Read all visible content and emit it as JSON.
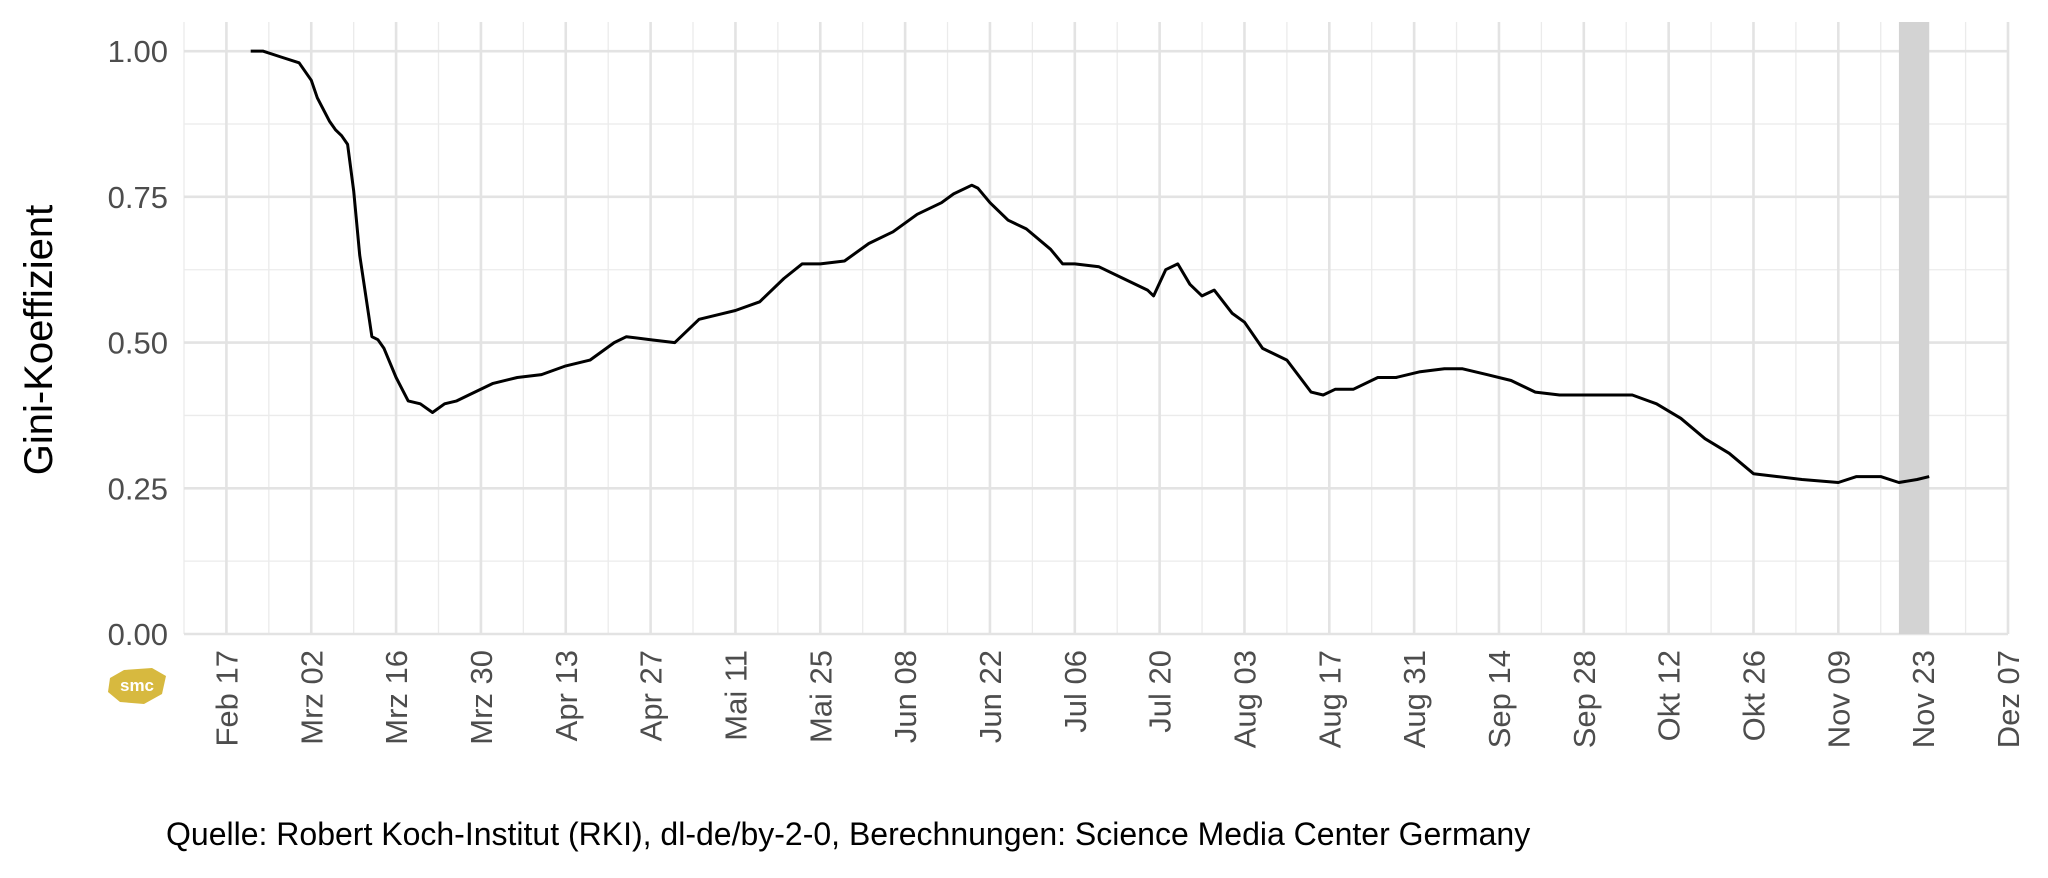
{
  "chart_data": {
    "type": "line",
    "title": "",
    "xlabel": "",
    "ylabel": "Gini-Koeffizient",
    "ylim": [
      0,
      1.05
    ],
    "yticks": [
      0,
      0.25,
      0.5,
      0.75,
      1.0
    ],
    "ytick_labels": [
      "0.00",
      "0.25",
      "0.50",
      "0.75",
      "1.00"
    ],
    "xticks": [
      "2020-02-17",
      "2020-03-02",
      "2020-03-16",
      "2020-03-30",
      "2020-04-13",
      "2020-04-27",
      "2020-05-11",
      "2020-05-25",
      "2020-06-08",
      "2020-06-22",
      "2020-07-06",
      "2020-07-20",
      "2020-08-03",
      "2020-08-17",
      "2020-08-31",
      "2020-09-14",
      "2020-09-28",
      "2020-10-12",
      "2020-10-26",
      "2020-11-09",
      "2020-11-23",
      "2020-12-07"
    ],
    "xtick_labels": [
      "Feb 17",
      "Mrz 02",
      "Mrz 16",
      "Mrz 30",
      "Apr 13",
      "Apr 27",
      "Mai 11",
      "Mai 25",
      "Jun 08",
      "Jun 22",
      "Jul 06",
      "Jul 20",
      "Aug 03",
      "Aug 17",
      "Aug 31",
      "Sep 14",
      "Sep 28",
      "Okt 12",
      "Okt 26",
      "Nov 09",
      "Nov 23",
      "Dez 07"
    ],
    "xlim": [
      "2020-02-10",
      "2020-12-07"
    ],
    "grid": true,
    "shaded_region": {
      "x0": "2020-11-19",
      "x1": "2020-11-24",
      "color": "#d3d3d3"
    },
    "series": [
      {
        "color": "#000000",
        "x": [
          "2020-02-21",
          "2020-02-23",
          "2020-02-26",
          "2020-02-29",
          "2020-03-02",
          "2020-03-03",
          "2020-03-05",
          "2020-03-06",
          "2020-03-07",
          "2020-03-08",
          "2020-03-09",
          "2020-03-10",
          "2020-03-12",
          "2020-03-13",
          "2020-03-14",
          "2020-03-16",
          "2020-03-18",
          "2020-03-20",
          "2020-03-22",
          "2020-03-24",
          "2020-03-26",
          "2020-03-28",
          "2020-04-01",
          "2020-04-05",
          "2020-04-09",
          "2020-04-13",
          "2020-04-17",
          "2020-04-21",
          "2020-04-23",
          "2020-04-27",
          "2020-05-01",
          "2020-05-05",
          "2020-05-09",
          "2020-05-11",
          "2020-05-15",
          "2020-05-19",
          "2020-05-22",
          "2020-05-25",
          "2020-05-29",
          "2020-06-02",
          "2020-06-06",
          "2020-06-10",
          "2020-06-14",
          "2020-06-16",
          "2020-06-19",
          "2020-06-20",
          "2020-06-22",
          "2020-06-25",
          "2020-06-28",
          "2020-07-02",
          "2020-07-04",
          "2020-07-06",
          "2020-07-10",
          "2020-07-14",
          "2020-07-18",
          "2020-07-19",
          "2020-07-21",
          "2020-07-23",
          "2020-07-25",
          "2020-07-27",
          "2020-07-29",
          "2020-08-01",
          "2020-08-03",
          "2020-08-06",
          "2020-08-10",
          "2020-08-14",
          "2020-08-16",
          "2020-08-18",
          "2020-08-21",
          "2020-08-25",
          "2020-08-28",
          "2020-09-01",
          "2020-09-05",
          "2020-09-08",
          "2020-09-12",
          "2020-09-16",
          "2020-09-20",
          "2020-09-24",
          "2020-09-28",
          "2020-10-02",
          "2020-10-06",
          "2020-10-10",
          "2020-10-14",
          "2020-10-18",
          "2020-10-22",
          "2020-10-26",
          "2020-10-30",
          "2020-11-03",
          "2020-11-09",
          "2020-11-12",
          "2020-11-16",
          "2020-11-19",
          "2020-11-22",
          "2020-11-24"
        ],
        "values": [
          1.0,
          1.0,
          0.99,
          0.98,
          0.95,
          0.92,
          0.88,
          0.865,
          0.855,
          0.84,
          0.76,
          0.65,
          0.51,
          0.505,
          0.49,
          0.44,
          0.4,
          0.395,
          0.38,
          0.395,
          0.4,
          0.41,
          0.43,
          0.44,
          0.445,
          0.46,
          0.47,
          0.5,
          0.51,
          0.505,
          0.5,
          0.54,
          0.55,
          0.555,
          0.57,
          0.61,
          0.635,
          0.635,
          0.64,
          0.67,
          0.69,
          0.72,
          0.74,
          0.755,
          0.77,
          0.765,
          0.74,
          0.71,
          0.695,
          0.66,
          0.635,
          0.635,
          0.63,
          0.61,
          0.59,
          0.58,
          0.625,
          0.635,
          0.6,
          0.58,
          0.59,
          0.55,
          0.535,
          0.49,
          0.47,
          0.415,
          0.41,
          0.42,
          0.42,
          0.44,
          0.44,
          0.45,
          0.455,
          0.455,
          0.445,
          0.435,
          0.415,
          0.41,
          0.41,
          0.41,
          0.41,
          0.395,
          0.37,
          0.335,
          0.31,
          0.275,
          0.27,
          0.265,
          0.26,
          0.27,
          0.27,
          0.26,
          0.265,
          0.27
        ]
      }
    ]
  },
  "caption": "Quelle: Robert Koch-Institut (RKI), dl-de/by-2-0, Berechnungen: Science Media Center Germany",
  "logo": {
    "text": "smc",
    "color": "#d7b93f"
  }
}
